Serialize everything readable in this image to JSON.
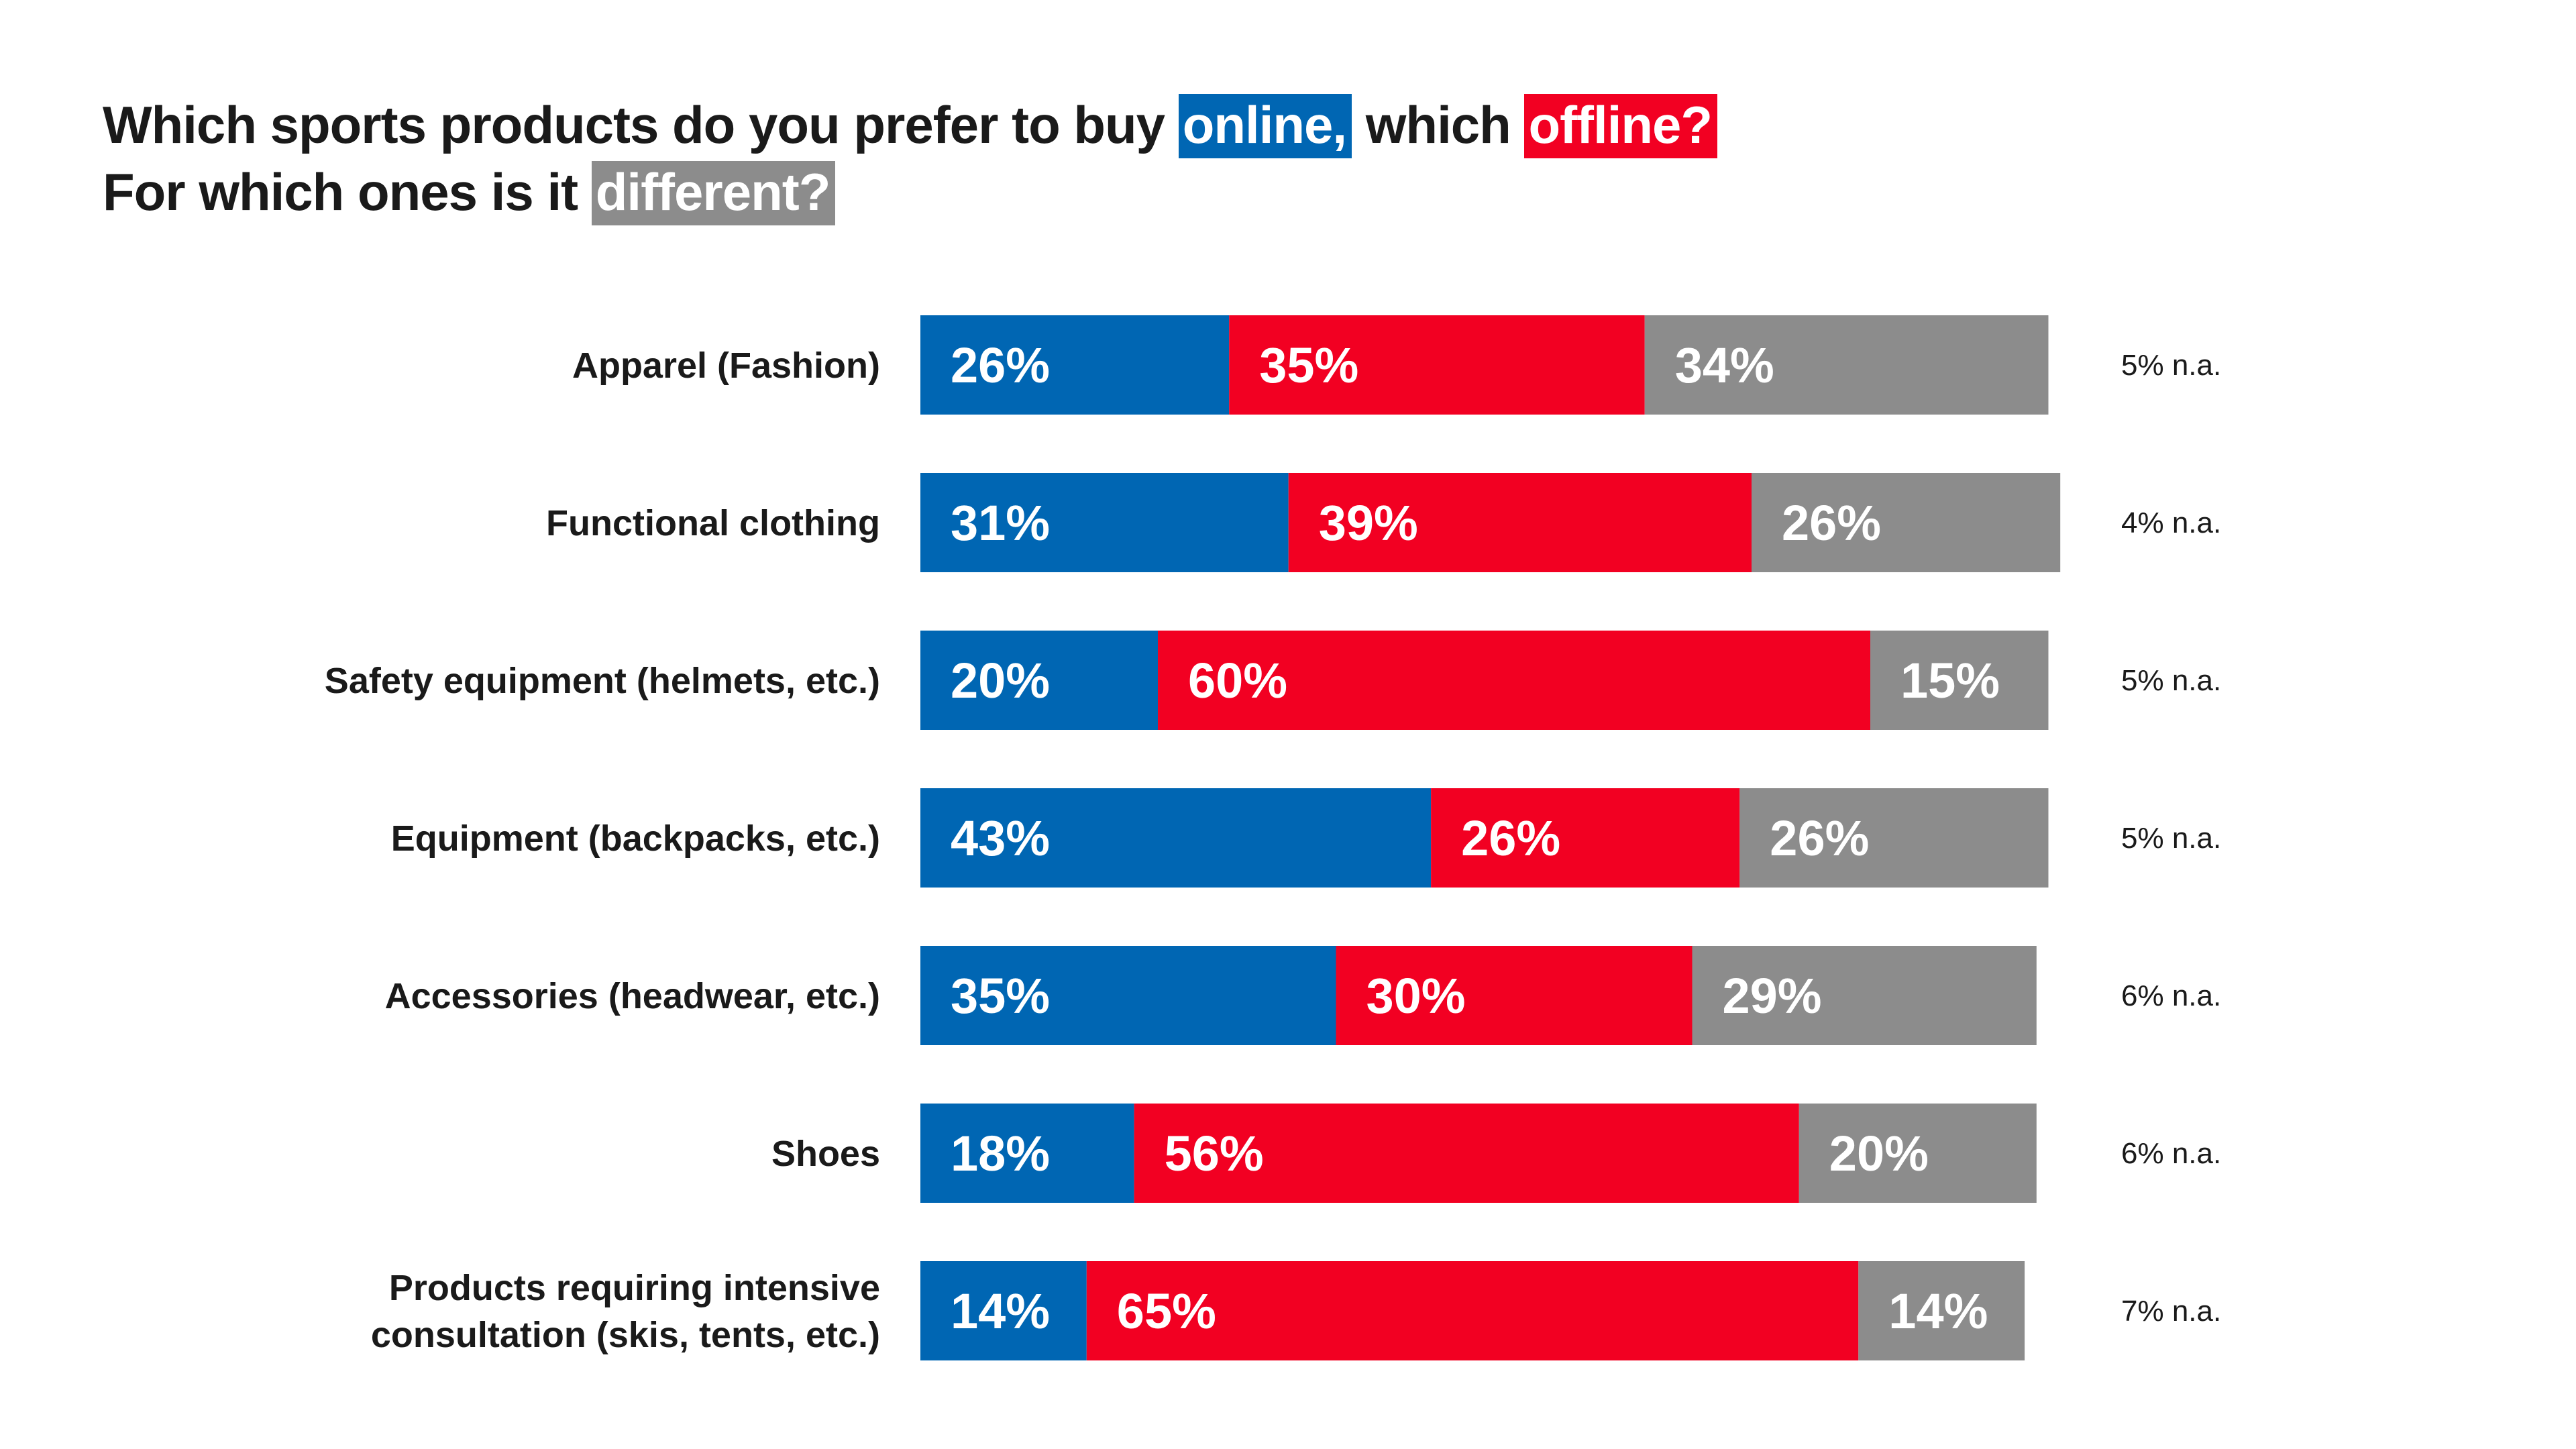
{
  "title": {
    "line1_prefix": "Which sports products do you prefer to buy",
    "online": "online,",
    "line1_mid": "which",
    "offline": "offline?",
    "line2_prefix": "For which ones is it",
    "different": "different?"
  },
  "colors": {
    "online": "#0066b3",
    "offline": "#f20022",
    "different": "#8c8c8c"
  },
  "chart_data": {
    "type": "bar",
    "orientation": "horizontal",
    "stacked": true,
    "categories": [
      [
        "Apparel (Fashion)"
      ],
      [
        "Functional clothing"
      ],
      [
        "Safety equipment (helmets, etc.)"
      ],
      [
        "Equipment (backpacks, etc.)"
      ],
      [
        "Accessories (headwear, etc.)"
      ],
      [
        "Shoes"
      ],
      [
        "Products requiring intensive",
        "consultation (skis, tents, etc.)"
      ]
    ],
    "series": [
      {
        "key": "online",
        "values": [
          26,
          31,
          20,
          43,
          35,
          18,
          14
        ],
        "labels": [
          "26%",
          "31%",
          "20%",
          "43%",
          "35%",
          "18%",
          "14%"
        ]
      },
      {
        "key": "offline",
        "values": [
          35,
          39,
          60,
          26,
          30,
          56,
          65
        ],
        "labels": [
          "35%",
          "39%",
          "60%",
          "26%",
          "30%",
          "56%",
          "65%"
        ]
      },
      {
        "key": "different",
        "values": [
          34,
          26,
          15,
          26,
          29,
          20,
          14
        ],
        "labels": [
          "34%",
          "26%",
          "15%",
          "26%",
          "29%",
          "20%",
          "14%"
        ]
      }
    ],
    "na_values": [
      5,
      4,
      5,
      5,
      6,
      6,
      7
    ],
    "na_labels": [
      "5% n.a.",
      "4% n.a.",
      "5% n.a.",
      "5% n.a.",
      "6% n.a.",
      "6% n.a.",
      "7% n.a."
    ],
    "xlim": [
      0,
      100
    ],
    "grid": false,
    "legend": "none"
  }
}
